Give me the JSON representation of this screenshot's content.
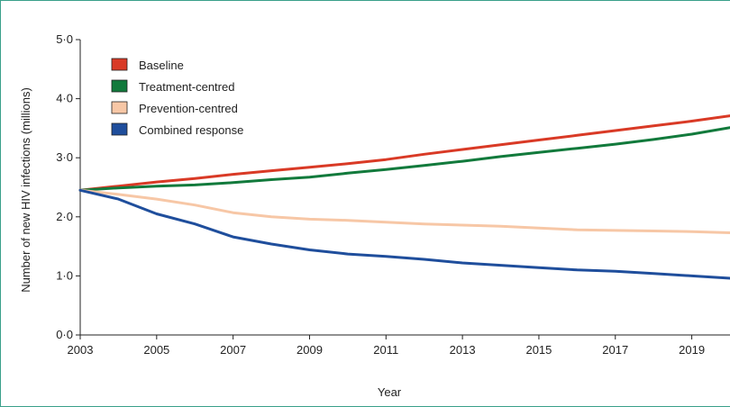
{
  "chart_data": {
    "type": "line",
    "title": "",
    "xlabel": "Year",
    "ylabel": "Number of new HIV infections (millions)",
    "xlim": [
      2003,
      2020
    ],
    "ylim": [
      0,
      5
    ],
    "x_ticks": [
      2003,
      2005,
      2007,
      2009,
      2011,
      2013,
      2015,
      2017,
      2019
    ],
    "x_tick_labels": [
      "2003",
      "2005",
      "2007",
      "2009",
      "2011",
      "2013",
      "2015",
      "2017",
      "2019"
    ],
    "y_ticks": [
      0,
      1,
      2,
      3,
      4,
      5
    ],
    "y_tick_labels": [
      "0·0",
      "1·0",
      "2·0",
      "3·0",
      "4·0",
      "5·0"
    ],
    "grid": false,
    "legend_position": "top-left",
    "x": [
      2003,
      2004,
      2005,
      2006,
      2007,
      2008,
      2009,
      2010,
      2011,
      2012,
      2013,
      2014,
      2015,
      2016,
      2017,
      2018,
      2019,
      2020
    ],
    "series": [
      {
        "name": "Baseline",
        "color": "#d93a26",
        "values": [
          2.45,
          2.52,
          2.59,
          2.65,
          2.72,
          2.78,
          2.84,
          2.9,
          2.97,
          3.06,
          3.14,
          3.22,
          3.3,
          3.38,
          3.46,
          3.54,
          3.62,
          3.71
        ]
      },
      {
        "name": "Treatment-centred",
        "color": "#127a3c",
        "values": [
          2.45,
          2.49,
          2.52,
          2.54,
          2.58,
          2.63,
          2.67,
          2.74,
          2.8,
          2.87,
          2.94,
          3.02,
          3.09,
          3.16,
          3.23,
          3.31,
          3.4,
          3.51
        ]
      },
      {
        "name": "Prevention-centred",
        "color": "#f7c7a6",
        "values": [
          2.45,
          2.38,
          2.3,
          2.2,
          2.07,
          2.0,
          1.96,
          1.94,
          1.91,
          1.88,
          1.86,
          1.84,
          1.81,
          1.78,
          1.77,
          1.76,
          1.75,
          1.73
        ]
      },
      {
        "name": "Combined response",
        "color": "#1f4e9c",
        "values": [
          2.45,
          2.3,
          2.05,
          1.88,
          1.66,
          1.54,
          1.44,
          1.37,
          1.33,
          1.28,
          1.22,
          1.18,
          1.14,
          1.1,
          1.08,
          1.04,
          1.0,
          0.96
        ]
      }
    ]
  }
}
